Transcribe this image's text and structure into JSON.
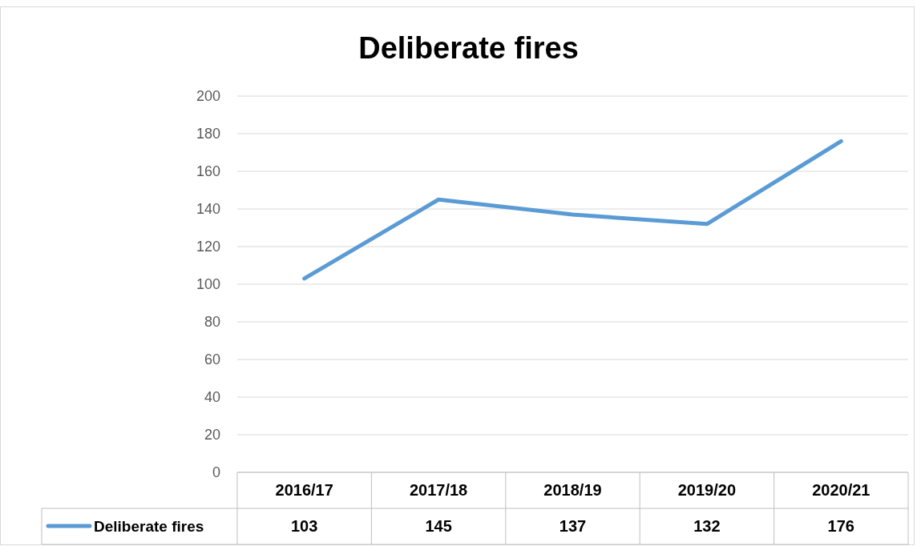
{
  "chart_data": {
    "type": "line",
    "title": "Deliberate fires",
    "categories": [
      "2016/17",
      "2017/18",
      "2018/19",
      "2019/20",
      "2020/21"
    ],
    "series": [
      {
        "name": "Deliberate fires",
        "color": "#5b9bd5",
        "values": [
          103,
          145,
          137,
          132,
          176
        ]
      }
    ],
    "ylim": [
      0,
      200
    ],
    "yticks": [
      0,
      20,
      40,
      60,
      80,
      100,
      120,
      140,
      160,
      180,
      200
    ],
    "grid": "y",
    "data_labels": true,
    "legend": "bottom"
  }
}
